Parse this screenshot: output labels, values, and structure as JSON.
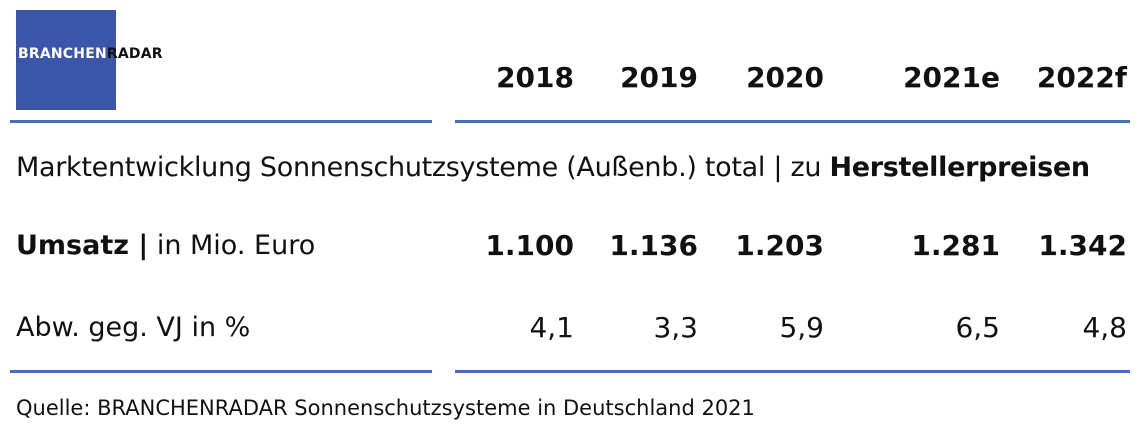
{
  "logo": {
    "part1": "BRANCHEN",
    "part2": "RADAR",
    "color": "#3b55a8"
  },
  "years": [
    "2018",
    "2019",
    "2020",
    "2021e",
    "2022f"
  ],
  "title": {
    "normal": "Marktentwicklung Sonnenschutzsysteme (Außenb.) total | zu ",
    "bold": "Herstellerpreisen"
  },
  "rows": [
    {
      "label_bold": "Umsatz |",
      "label_rest": " in Mio. Euro",
      "values": [
        "1.100",
        "1.136",
        "1.203",
        "1.281",
        "1.342"
      ]
    },
    {
      "label": "Abw. geg. VJ in %",
      "values": [
        "4,1",
        "3,3",
        "5,9",
        "6,5",
        "4,8"
      ]
    }
  ],
  "source": "Quelle: BRANCHENRADAR Sonnenschutzsysteme in Deutschland 2021",
  "accent": "#4b6fb6"
}
